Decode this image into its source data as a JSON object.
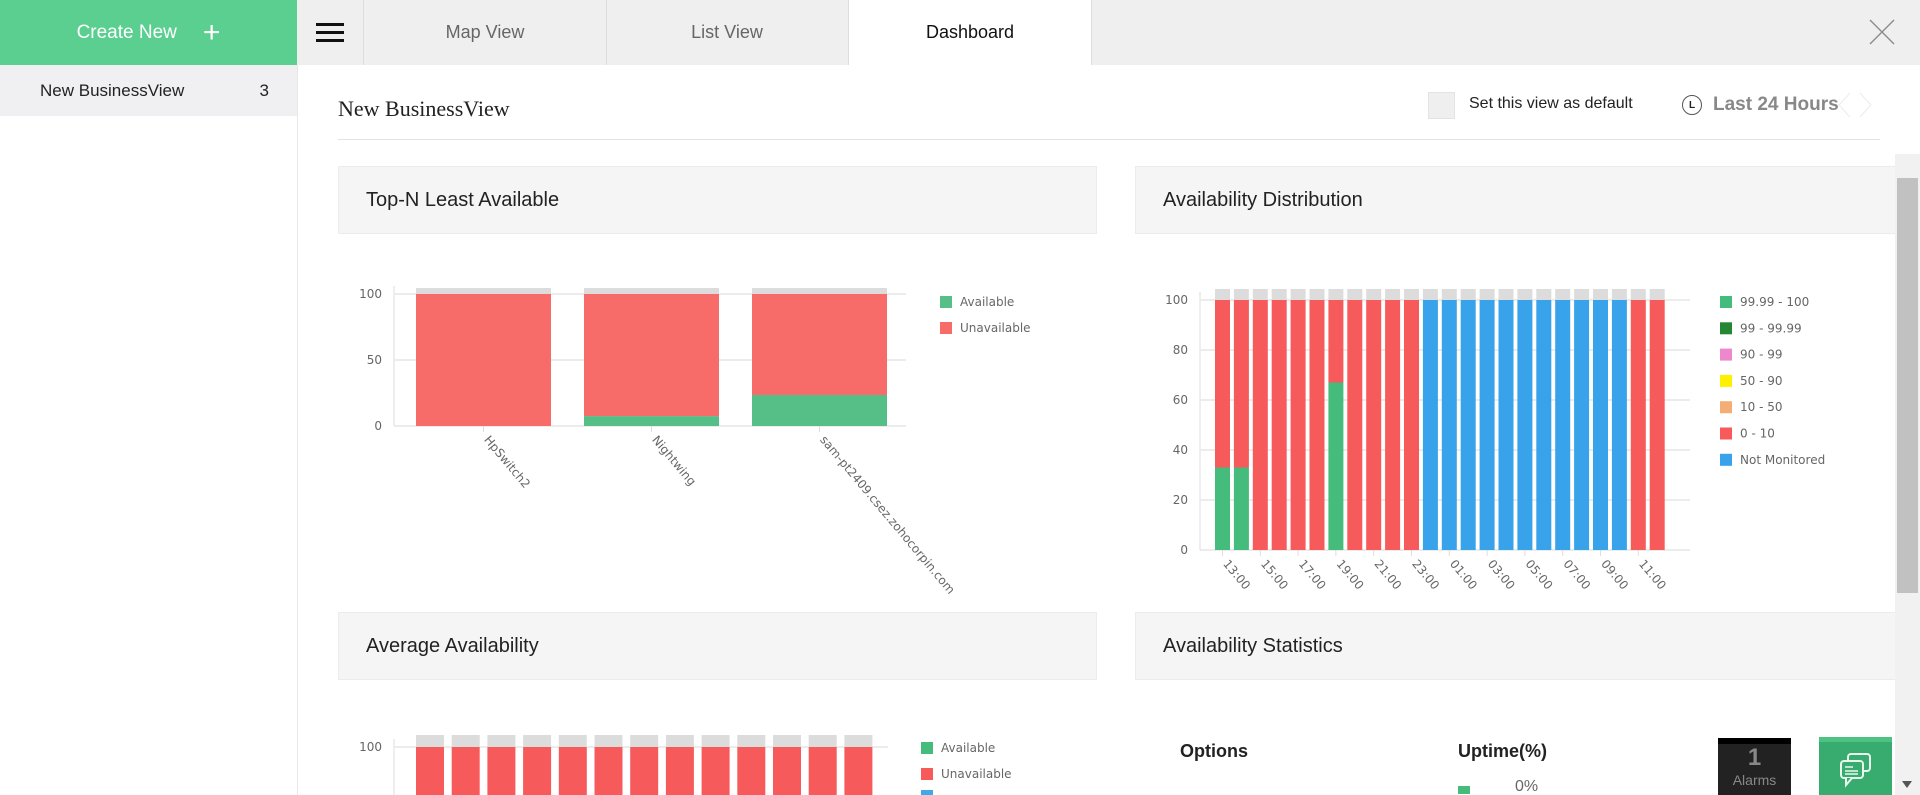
{
  "sidebar": {
    "create_label": "Create New",
    "items": [
      {
        "label": "New BusinessView",
        "count": "3"
      }
    ]
  },
  "tabs": [
    {
      "label": "Map View"
    },
    {
      "label": "List View"
    },
    {
      "label": "Dashboard",
      "active": true
    }
  ],
  "header": {
    "title": "New BusinessView",
    "default_label": "Set this view as default",
    "default_checked": false,
    "time_range": "Last 24 Hours"
  },
  "panels": {
    "top_n": "Top-N Least Available",
    "distribution": "Availability Distribution",
    "average": "Average Availability",
    "statistics": "Availability Statistics"
  },
  "statistics": {
    "col_options": "Options",
    "col_uptime": "Uptime(%)",
    "first_value": "0%"
  },
  "alarms": {
    "count": "1",
    "label": "Alarms"
  },
  "colors": {
    "available": "#55bf87",
    "unavailable": "#f76b69",
    "not_monitored": "#42a9e8",
    "brand": "#5acf8f"
  },
  "chart_data": [
    {
      "type": "bar",
      "stacked": true,
      "title": "Top-N Least Available",
      "categories": [
        "HpSwitch2",
        "Nightwing",
        "sam-pt2409.csez.zohocorpin.com"
      ],
      "series": [
        {
          "name": "Available",
          "values": [
            0,
            7.5,
            23.5
          ],
          "color": "#55bf87"
        },
        {
          "name": "Unavailable",
          "values": [
            100,
            92.5,
            76.5
          ],
          "color": "#f76b69"
        }
      ],
      "ylim": [
        0,
        100
      ],
      "yticks": [
        "0",
        "50",
        "100"
      ],
      "legend": "right"
    },
    {
      "type": "bar",
      "stacked": true,
      "title": "Availability Distribution",
      "categories": [
        "13:00",
        "14:00",
        "15:00",
        "16:00",
        "17:00",
        "18:00",
        "19:00",
        "20:00",
        "21:00",
        "22:00",
        "23:00",
        "00:00",
        "01:00",
        "02:00",
        "03:00",
        "04:00",
        "05:00",
        "06:00",
        "07:00",
        "08:00",
        "09:00",
        "10:00",
        "11:00",
        "12:00"
      ],
      "xtick_labels": [
        "13:00",
        "15:00",
        "17:00",
        "19:00",
        "21:00",
        "23:00",
        "01:00",
        "03:00",
        "05:00",
        "07:00",
        "09:00",
        "11:00"
      ],
      "series": [
        {
          "name": "99.99 - 100",
          "color": "#45bb7c",
          "values": [
            33,
            33,
            0,
            0,
            0,
            0,
            67,
            0,
            0,
            0,
            0,
            0,
            0,
            0,
            0,
            0,
            0,
            0,
            0,
            0,
            0,
            0,
            0,
            0
          ]
        },
        {
          "name": "99 - 99.99",
          "color": "#258633",
          "values": [
            0,
            0,
            0,
            0,
            0,
            0,
            0,
            0,
            0,
            0,
            0,
            0,
            0,
            0,
            0,
            0,
            0,
            0,
            0,
            0,
            0,
            0,
            0,
            0
          ]
        },
        {
          "name": "90 - 99",
          "color": "#ee88cc",
          "values": [
            0,
            0,
            0,
            0,
            0,
            0,
            0,
            0,
            0,
            0,
            0,
            0,
            0,
            0,
            0,
            0,
            0,
            0,
            0,
            0,
            0,
            0,
            0,
            0
          ]
        },
        {
          "name": "50 - 90",
          "color": "#fff000",
          "values": [
            0,
            0,
            0,
            0,
            0,
            0,
            0,
            0,
            0,
            0,
            0,
            0,
            0,
            0,
            0,
            0,
            0,
            0,
            0,
            0,
            0,
            0,
            0,
            0
          ]
        },
        {
          "name": "10 - 50",
          "color": "#f4ad74",
          "values": [
            0,
            0,
            0,
            0,
            0,
            0,
            0,
            0,
            0,
            0,
            0,
            0,
            0,
            0,
            0,
            0,
            0,
            0,
            0,
            0,
            0,
            0,
            0,
            0
          ]
        },
        {
          "name": "0 - 10",
          "color": "#f75a5a",
          "values": [
            67,
            67,
            100,
            100,
            100,
            100,
            33,
            100,
            100,
            100,
            100,
            0,
            0,
            0,
            0,
            0,
            0,
            0,
            0,
            0,
            0,
            0,
            100,
            100
          ]
        },
        {
          "name": "Not Monitored",
          "color": "#38a3ea",
          "values": [
            0,
            0,
            0,
            0,
            0,
            0,
            0,
            0,
            0,
            0,
            0,
            100,
            100,
            100,
            100,
            100,
            100,
            100,
            100,
            100,
            100,
            100,
            0,
            0
          ]
        }
      ],
      "ylim": [
        0,
        100
      ],
      "yticks": [
        "0",
        "20",
        "40",
        "60",
        "80",
        "100"
      ],
      "legend": "right"
    },
    {
      "type": "bar",
      "stacked": true,
      "title": "Average Availability",
      "bar_count": 13,
      "series": [
        {
          "name": "Available",
          "color": "#45bb7c",
          "values": [
            0,
            0,
            0,
            0,
            0,
            0,
            0,
            0,
            0,
            0,
            0,
            0,
            0
          ]
        },
        {
          "name": "Unavailable",
          "color": "#f75a5a",
          "values": [
            100,
            100,
            100,
            100,
            100,
            100,
            100,
            100,
            100,
            100,
            100,
            100,
            100
          ]
        }
      ],
      "ylim": [
        0,
        100
      ],
      "yticks": [
        "100"
      ],
      "legend": "right"
    }
  ]
}
